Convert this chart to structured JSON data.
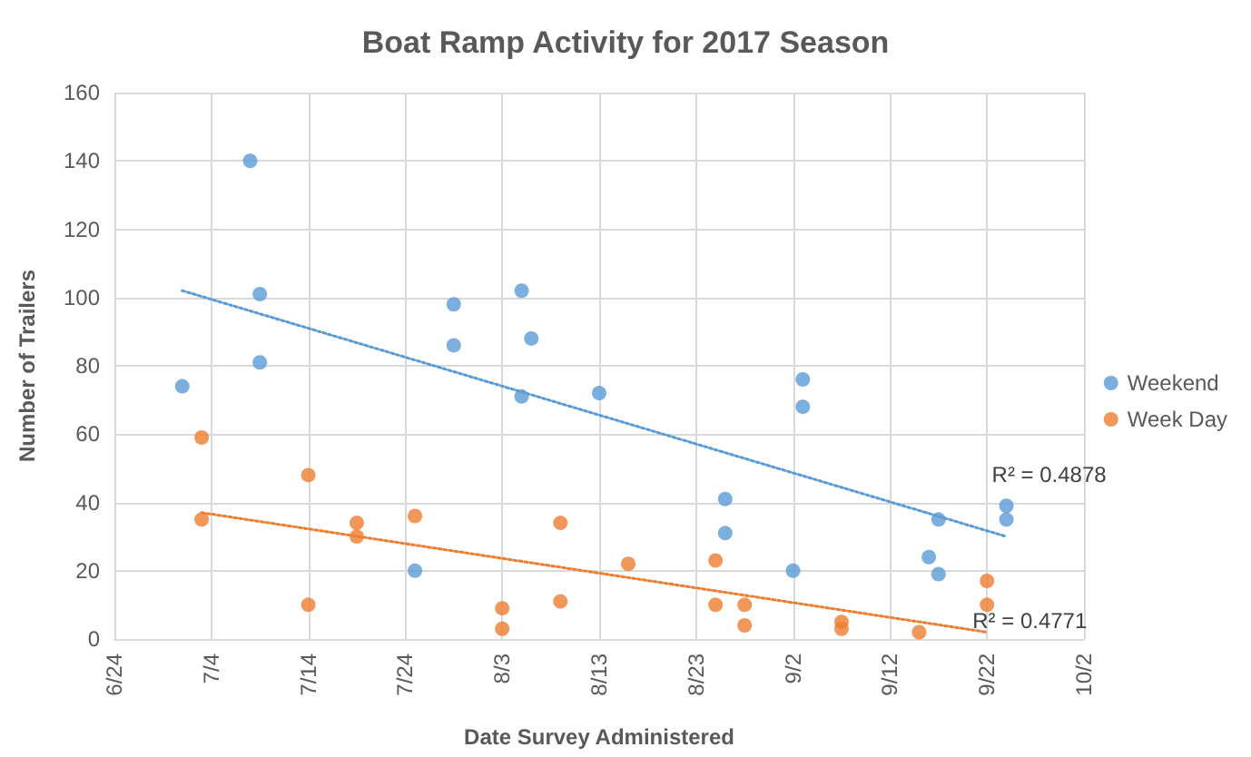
{
  "chart_data": {
    "type": "scatter",
    "title": "Boat Ramp Activity for 2017 Season",
    "xlabel": "Date Survey Administered",
    "ylabel": "Number of Trailers",
    "xlim": [
      "--06-24",
      "--10-02"
    ],
    "xticks": [
      {
        "value": "--06-24",
        "label": "6/24"
      },
      {
        "value": "--07-04",
        "label": "7/4"
      },
      {
        "value": "--07-14",
        "label": "7/14"
      },
      {
        "value": "--07-24",
        "label": "7/24"
      },
      {
        "value": "--08-03",
        "label": "8/3"
      },
      {
        "value": "--08-13",
        "label": "8/13"
      },
      {
        "value": "--08-23",
        "label": "8/23"
      },
      {
        "value": "--09-02",
        "label": "9/2"
      },
      {
        "value": "--09-12",
        "label": "9/12"
      },
      {
        "value": "--09-22",
        "label": "9/22"
      },
      {
        "value": "--10-02",
        "label": "10/2"
      }
    ],
    "ylim": [
      0,
      160
    ],
    "yticks": [
      0,
      20,
      40,
      60,
      80,
      100,
      120,
      140,
      160
    ],
    "grid": true,
    "legend": "right",
    "marker": "circle",
    "series": [
      {
        "name": "Weekend",
        "color": "#5b9bd5",
        "x": [
          "--07-01",
          "--07-08",
          "--07-09",
          "--07-09",
          "--07-25",
          "--07-29",
          "--07-29",
          "--08-05",
          "--08-05",
          "--08-06",
          "--08-13",
          "--08-26",
          "--08-26",
          "--09-02",
          "--09-03",
          "--09-03",
          "--09-16",
          "--09-17",
          "--09-17",
          "--09-24",
          "--09-24"
        ],
        "values": [
          74,
          140,
          101,
          81,
          20,
          98,
          86,
          102,
          71,
          88,
          72,
          41,
          31,
          20,
          76,
          68,
          24,
          35,
          19,
          39,
          35
        ]
      },
      {
        "name": "Week Day",
        "color": "#ed7d31",
        "x": [
          "--07-03",
          "--07-03",
          "--07-14",
          "--07-14",
          "--07-19",
          "--07-19",
          "--07-25",
          "--08-03",
          "--08-03",
          "--08-09",
          "--08-09",
          "--08-16",
          "--08-25",
          "--08-25",
          "--08-28",
          "--08-28",
          "--09-07",
          "--09-07",
          "--09-15",
          "--09-22",
          "--09-22"
        ],
        "values": [
          59,
          35,
          48,
          10,
          34,
          30,
          36,
          9,
          3,
          34,
          11,
          22,
          23,
          10,
          10,
          4,
          5,
          3,
          2,
          17,
          10
        ]
      },
      {
        "type": "line",
        "color": "#5b9bd5",
        "line_style": "dotted",
        "marker": "none",
        "x": [
          "--07-01",
          "--09-24"
        ],
        "values": [
          102,
          30
        ]
      },
      {
        "type": "line",
        "color": "#ed7d31",
        "line_style": "dotted",
        "marker": "none",
        "x": [
          "--07-03",
          "--09-22"
        ],
        "values": [
          37,
          2
        ]
      }
    ],
    "annotations": [
      "R² = 0.4878",
      "R² = 0.4771"
    ]
  }
}
